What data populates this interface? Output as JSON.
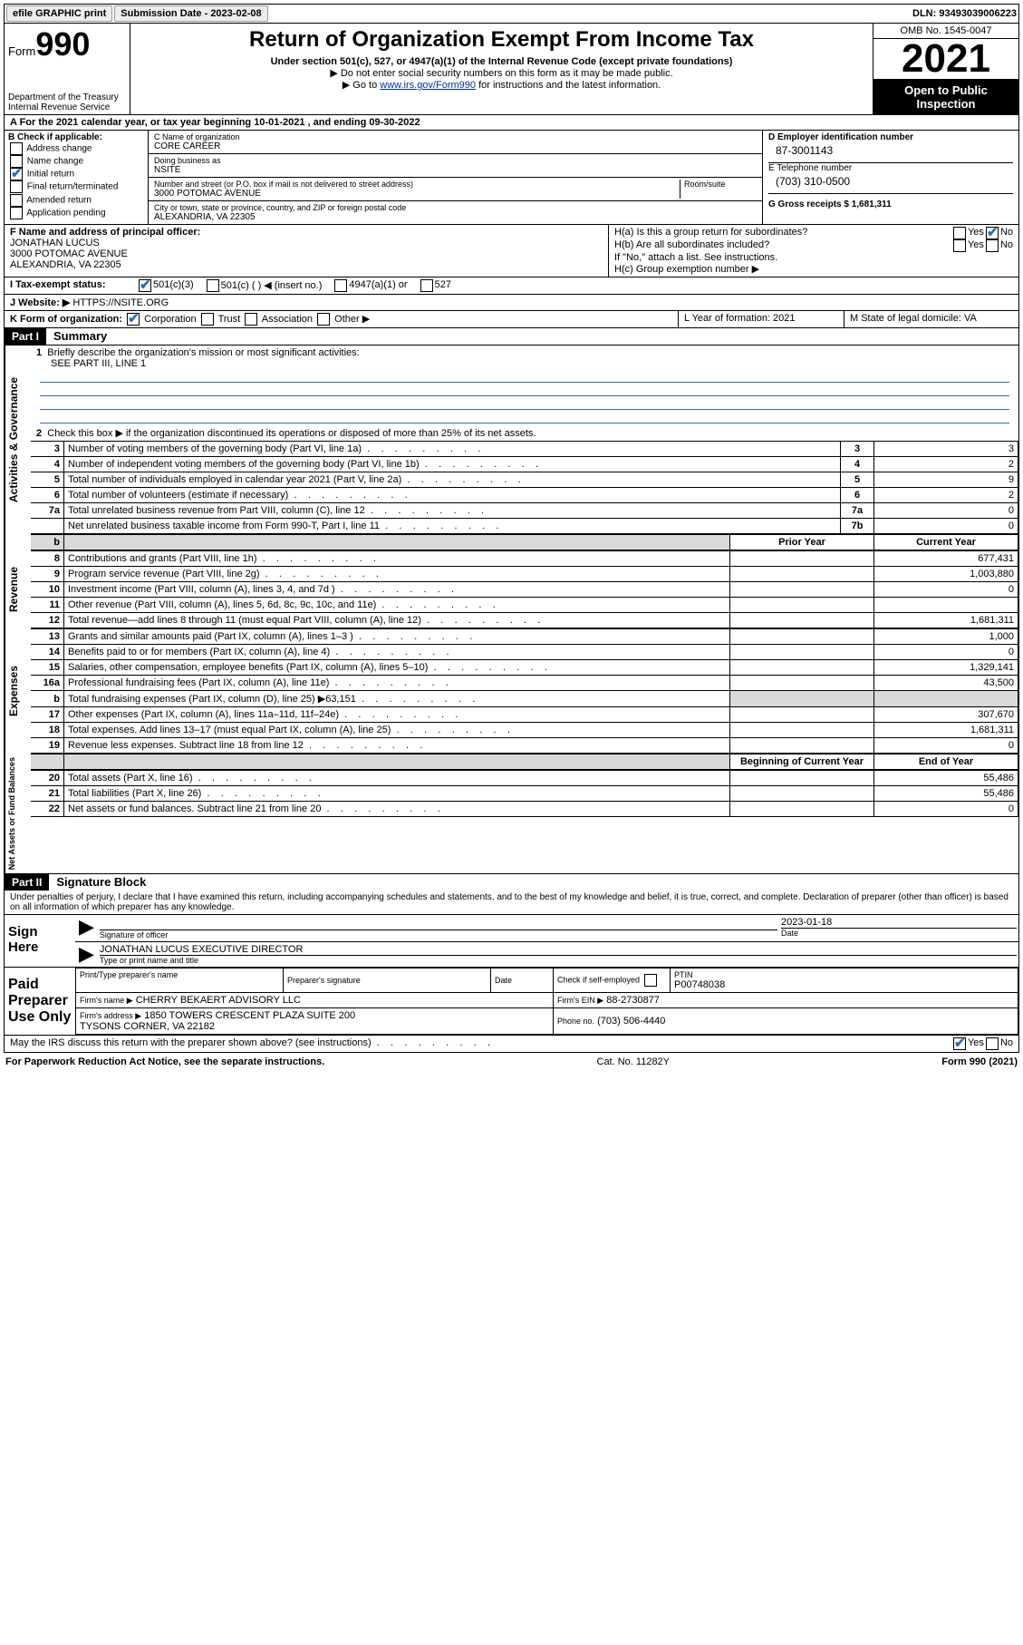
{
  "topbar": {
    "efile_label": "efile GRAPHIC print",
    "submission_label": "Submission Date - 2023-02-08",
    "dln_label": "DLN: 93493039006223"
  },
  "header": {
    "form_label": "Form",
    "form_number": "990",
    "title": "Return of Organization Exempt From Income Tax",
    "subtitle": "Under section 501(c), 527, or 4947(a)(1) of the Internal Revenue Code (except private foundations)",
    "note1": "▶ Do not enter social security numbers on this form as it may be made public.",
    "note2_pre": "▶ Go to ",
    "note2_link": "www.irs.gov/Form990",
    "note2_post": " for instructions and the latest information.",
    "dept": "Department of the Treasury\nInternal Revenue Service",
    "omb": "OMB No. 1545-0047",
    "year": "2021",
    "open": "Open to Public Inspection"
  },
  "section_a": {
    "label": "A For the 2021 calendar year, or tax year beginning 10-01-2021    , and ending 09-30-2022"
  },
  "section_b": {
    "heading": "B Check if applicable:",
    "items": [
      "Address change",
      "Name change",
      "Initial return",
      "Final return/terminated",
      "Amended return",
      "Application pending"
    ],
    "checked_index": 2,
    "c_name_label": "C Name of organization",
    "c_name": "CORE CAREER",
    "dba_label": "Doing business as",
    "dba": "NSITE",
    "addr_label": "Number and street (or P.O. box if mail is not delivered to street address)",
    "room_label": "Room/suite",
    "addr": "3000 POTOMAC AVENUE",
    "city_label": "City or town, state or province, country, and ZIP or foreign postal code",
    "city": "ALEXANDRIA, VA  22305",
    "d_label": "D Employer identification number",
    "d_value": "87-3001143",
    "e_label": "E Telephone number",
    "e_value": "(703) 310-0500",
    "g_label": "G Gross receipts $ 1,681,311"
  },
  "section_f": {
    "label": "F  Name and address of principal officer:",
    "name": "JONATHAN LUCUS",
    "addr1": "3000 POTOMAC AVENUE",
    "addr2": "ALEXANDRIA, VA  22305"
  },
  "section_h": {
    "ha": "H(a)  Is this a group return for subordinates?",
    "hb": "H(b)  Are all subordinates included?",
    "hb_note": "If \"No,\" attach a list. See instructions.",
    "hc": "H(c)  Group exemption number ▶",
    "yes": "Yes",
    "no": "No"
  },
  "section_i": {
    "label": "I      Tax-exempt status:",
    "opts": [
      "501(c)(3)",
      "501(c) (  ) ◀ (insert no.)",
      "4947(a)(1) or",
      "527"
    ]
  },
  "section_j": {
    "label": "J     Website: ▶ ",
    "value": "HTTPS://NSITE.ORG"
  },
  "section_k": {
    "label": "K Form of organization:",
    "opts": [
      "Corporation",
      "Trust",
      "Association",
      "Other ▶"
    ],
    "l_label": "L Year of formation: 2021",
    "m_label": "M State of legal domicile: VA"
  },
  "part1": {
    "hdr": "Part I",
    "title": "Summary",
    "q1": "Briefly describe the organization's mission or most significant activities:",
    "q1_text": "SEE PART III, LINE 1",
    "q2": "Check this box ▶        if the organization discontinued its operations or disposed of more than 25% of its net assets.",
    "rows_gov": [
      {
        "n": "3",
        "label": "Number of voting members of the governing body (Part VI, line 1a)",
        "box": "3",
        "val": "3"
      },
      {
        "n": "4",
        "label": "Number of independent voting members of the governing body (Part VI, line 1b)",
        "box": "4",
        "val": "2"
      },
      {
        "n": "5",
        "label": "Total number of individuals employed in calendar year 2021 (Part V, line 2a)",
        "box": "5",
        "val": "9"
      },
      {
        "n": "6",
        "label": "Total number of volunteers (estimate if necessary)",
        "box": "6",
        "val": "2"
      },
      {
        "n": "7a",
        "label": "Total unrelated business revenue from Part VIII, column (C), line 12",
        "box": "7a",
        "val": "0"
      },
      {
        "n": "  ",
        "label": "Net unrelated business taxable income from Form 990-T, Part I, line 11",
        "box": "7b",
        "val": "0"
      }
    ],
    "col_py": "Prior Year",
    "col_cy": "Current Year",
    "rows_rev": [
      {
        "n": "8",
        "label": "Contributions and grants (Part VIII, line 1h)",
        "cy": "677,431"
      },
      {
        "n": "9",
        "label": "Program service revenue (Part VIII, line 2g)",
        "cy": "1,003,880"
      },
      {
        "n": "10",
        "label": "Investment income (Part VIII, column (A), lines 3, 4, and 7d )",
        "cy": "0"
      },
      {
        "n": "11",
        "label": "Other revenue (Part VIII, column (A), lines 5, 6d, 8c, 9c, 10c, and 11e)",
        "cy": ""
      },
      {
        "n": "12",
        "label": "Total revenue—add lines 8 through 11 (must equal Part VIII, column (A), line 12)",
        "cy": "1,681,311"
      }
    ],
    "rows_exp": [
      {
        "n": "13",
        "label": "Grants and similar amounts paid (Part IX, column (A), lines 1–3 )",
        "cy": "1,000"
      },
      {
        "n": "14",
        "label": "Benefits paid to or for members (Part IX, column (A), line 4)",
        "cy": "0"
      },
      {
        "n": "15",
        "label": "Salaries, other compensation, employee benefits (Part IX, column (A), lines 5–10)",
        "cy": "1,329,141"
      },
      {
        "n": "16a",
        "label": "Professional fundraising fees (Part IX, column (A), line 11e)",
        "cy": "43,500"
      },
      {
        "n": "b",
        "label": "Total fundraising expenses (Part IX, column (D), line 25) ▶63,151",
        "cy": "",
        "shade_cy": true,
        "shade_py": true
      },
      {
        "n": "17",
        "label": "Other expenses (Part IX, column (A), lines 11a–11d, 11f–24e)",
        "cy": "307,670"
      },
      {
        "n": "18",
        "label": "Total expenses. Add lines 13–17 (must equal Part IX, column (A), line 25)",
        "cy": "1,681,311"
      },
      {
        "n": "19",
        "label": "Revenue less expenses. Subtract line 18 from line 12",
        "cy": "0"
      }
    ],
    "col_boc": "Beginning of Current Year",
    "col_eoy": "End of Year",
    "rows_net": [
      {
        "n": "20",
        "label": "Total assets (Part X, line 16)",
        "cy": "55,486"
      },
      {
        "n": "21",
        "label": "Total liabilities (Part X, line 26)",
        "cy": "55,486"
      },
      {
        "n": "22",
        "label": "Net assets or fund balances. Subtract line 21 from line 20",
        "cy": "0"
      }
    ],
    "vlabels": {
      "gov": "Activities & Governance",
      "rev": "Revenue",
      "exp": "Expenses",
      "net": "Net Assets or Fund Balances"
    }
  },
  "part2": {
    "hdr": "Part II",
    "title": "Signature Block",
    "decl": "Under penalties of perjury, I declare that I have examined this return, including accompanying schedules and statements, and to the best of my knowledge and belief, it is true, correct, and complete. Declaration of preparer (other than officer) is based on all information of which preparer has any knowledge.",
    "sign_here": "Sign Here",
    "sig_officer": "Signature of officer",
    "sig_date_label": "Date",
    "sig_date": "2023-01-18",
    "officer_name": "JONATHAN LUCUS EXECUTIVE DIRECTOR",
    "officer_type_label": "Type or print name and title",
    "paid": "Paid Preparer Use Only",
    "prep_name_label": "Print/Type preparer's name",
    "prep_sig_label": "Preparer's signature",
    "prep_date_label": "Date",
    "prep_self": "Check        if self-employed",
    "ptin_label": "PTIN",
    "ptin": "P00748038",
    "firm_name_label": "Firm's name    ▶",
    "firm_name": "CHERRY BEKAERT ADVISORY LLC",
    "firm_ein_label": "Firm's EIN ▶",
    "firm_ein": "88-2730877",
    "firm_addr_label": "Firm's address ▶",
    "firm_addr": "1850 TOWERS CRESCENT PLAZA SUITE 200\nTYSONS CORNER, VA  22182",
    "phone_label": "Phone no.",
    "phone": "(703) 506-4440",
    "discuss": "May the IRS discuss this return with the preparer shown above? (see instructions)"
  },
  "footer": {
    "left": "For Paperwork Reduction Act Notice, see the separate instructions.",
    "mid": "Cat. No. 11282Y",
    "right": "Form 990 (2021)"
  }
}
